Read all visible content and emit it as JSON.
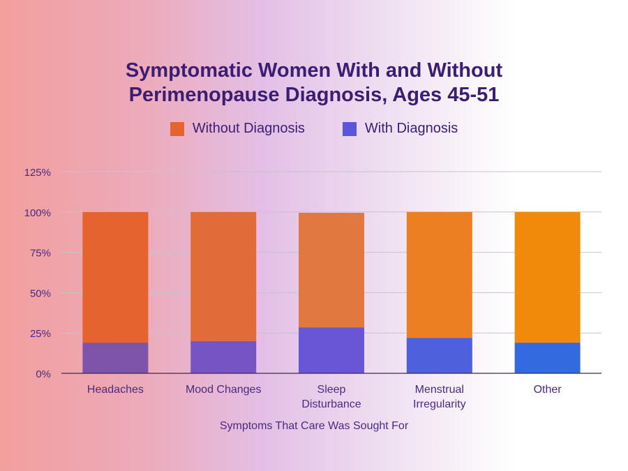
{
  "chart_data": {
    "type": "bar",
    "stacked": true,
    "title_lines": [
      "Symptomatic Women With and Without",
      "Perimenopause Diagnosis, Ages 45-51"
    ],
    "categories": [
      [
        "Headaches"
      ],
      [
        "Mood Changes"
      ],
      [
        "Sleep",
        "Disturbance"
      ],
      [
        "Menstrual",
        "Irregularity"
      ],
      [
        "Other"
      ]
    ],
    "series": [
      {
        "name": "With Diagnosis",
        "values": [
          19,
          20,
          28.5,
          22,
          19
        ],
        "color": "#5a55d9"
      },
      {
        "name": "Without Diagnosis",
        "values": [
          81,
          80,
          71,
          78,
          81
        ],
        "color": "#e66a35"
      }
    ],
    "bar_colors": {
      "without": [
        "#e4632f",
        "#e26b3a",
        "#e07840",
        "#eb7f22",
        "#f18a0a"
      ],
      "with": [
        "#7c55aa",
        "#7655c2",
        "#6956d6",
        "#4f60dd",
        "#336ae0"
      ]
    },
    "xlabel": "Symptoms That Care Was Sought For",
    "ylabel": "",
    "ylim": [
      0,
      125
    ],
    "yticks": [
      "0%",
      "25%",
      "50%",
      "75%",
      "100%",
      "125%"
    ],
    "grid": true,
    "legend_position": "top-center"
  },
  "legend": {
    "without_label": "Without Diagnosis",
    "without_color": "#e4632f",
    "with_label": "With Diagnosis",
    "with_color": "#5a55d9"
  }
}
